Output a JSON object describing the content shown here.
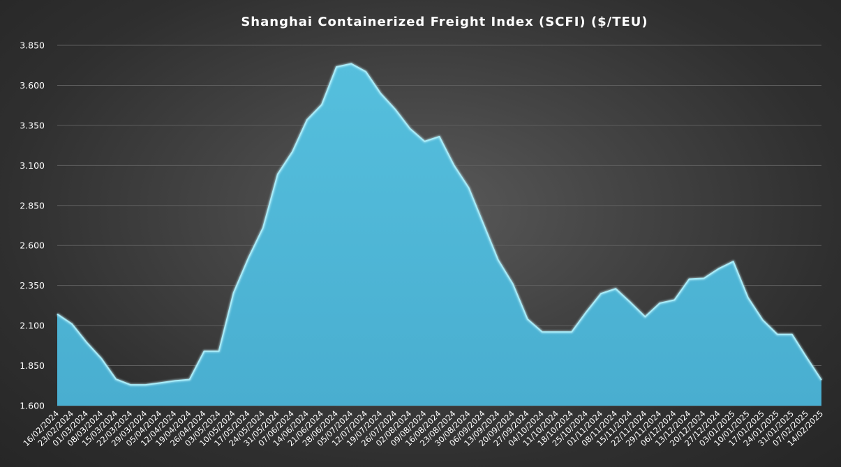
{
  "chart_data": {
    "type": "area",
    "title": "Shanghai  Containerized  Freight  Index  (SCFI) ($/TEU)",
    "xlabel": "",
    "ylabel": "",
    "ylim": [
      1600,
      3850
    ],
    "yticks": [
      1600,
      1850,
      2100,
      2350,
      2600,
      2850,
      3100,
      3350,
      3600,
      3850
    ],
    "ytick_labels": [
      "1.600",
      "1.850",
      "2.100",
      "2.350",
      "2.600",
      "2.850",
      "3.100",
      "3.350",
      "3.600",
      "3.850"
    ],
    "grid": true,
    "legend": "none",
    "color": "#4fb6d6",
    "edge_color": "#a8ecf8",
    "x": [
      "16/02/2024",
      "23/02/2024",
      "01/03/2024",
      "08/03/2024",
      "15/03/2024",
      "22/03/2024",
      "29/03/2024",
      "05/04/2024",
      "12/04/2024",
      "19/04/2024",
      "26/04/2024",
      "03/05/2024",
      "10/05/2024",
      "17/05/2024",
      "24/05/2024",
      "31/05/2024",
      "07/06/2024",
      "14/06/2024",
      "21/06/2024",
      "28/06/2024",
      "05/07/2024",
      "12/07/2024",
      "19/07/2024",
      "26/07/2024",
      "02/08/2024",
      "09/08/2024",
      "16/08/2024",
      "23/08/2024",
      "30/08/2024",
      "06/09/2024",
      "13/09/2024",
      "20/09/2024",
      "27/09/2024",
      "04/10/2024",
      "11/10/2024",
      "18/10/2024",
      "25/10/2024",
      "01/11/2024",
      "08/11/2024",
      "15/11/2024",
      "22/11/2024",
      "29/11/2024",
      "06/12/2024",
      "13/12/2024",
      "20/12/2024",
      "27/12/2024",
      "03/01/2025",
      "10/01/2025",
      "17/01/2025",
      "24/01/2025",
      "31/01/2025",
      "07/02/2025",
      "14/02/2025"
    ],
    "values": [
      2172,
      2110,
      1995,
      1895,
      1765,
      1730,
      1730,
      1742,
      1755,
      1763,
      1940,
      1940,
      2305,
      2520,
      2710,
      3045,
      3185,
      3385,
      3480,
      3715,
      3735,
      3685,
      3550,
      3450,
      3330,
      3250,
      3280,
      3100,
      2960,
      2735,
      2510,
      2360,
      2140,
      2060,
      2060,
      2060,
      2185,
      2300,
      2330,
      2245,
      2155,
      2240,
      2260,
      2390,
      2395,
      2455,
      2500,
      2275,
      2135,
      2045,
      2045,
      1900,
      1760
    ]
  }
}
